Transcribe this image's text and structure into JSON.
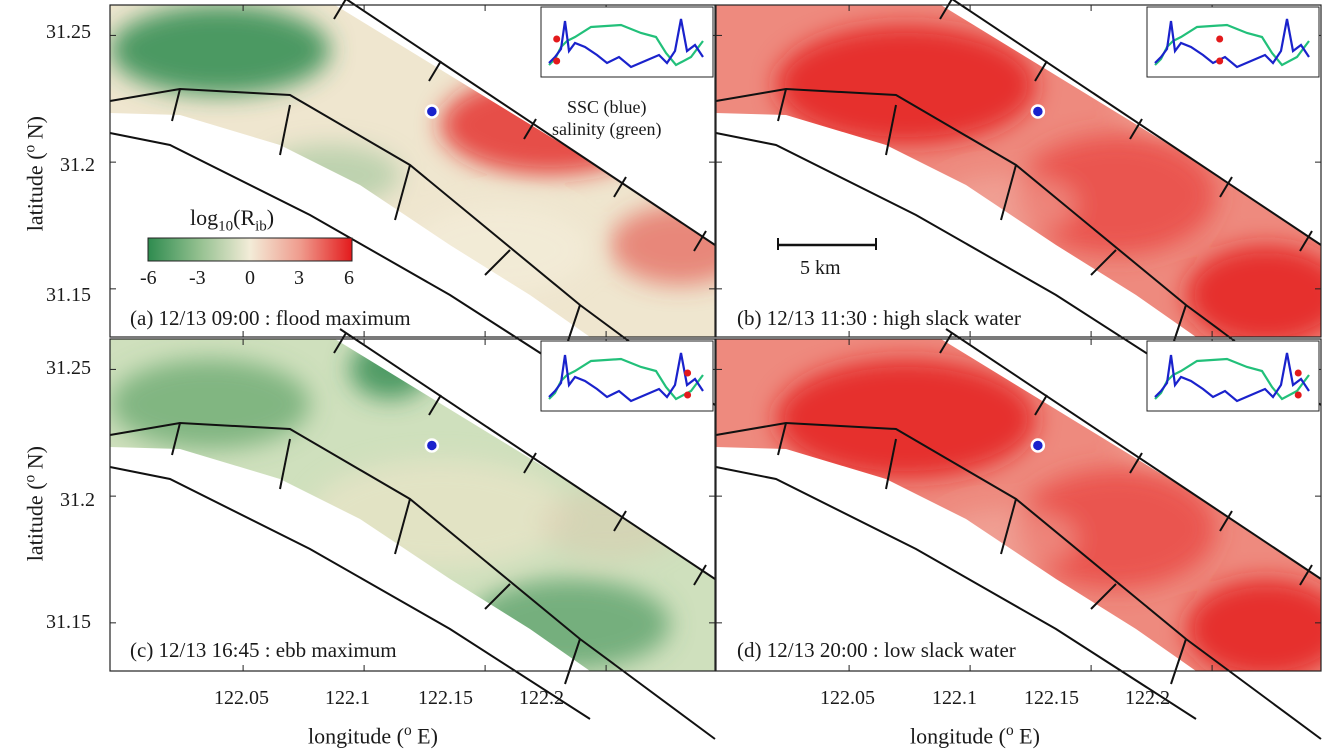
{
  "chart_data": {
    "type": "heatmap",
    "panels": [
      {
        "id": "a",
        "time": "12/13 09:00",
        "phase": "flood maximum",
        "label": "(a) 12/13 09:00 : flood maximum",
        "mood": "mixed",
        "marker": {
          "lon": 122.128,
          "lat": 31.22
        }
      },
      {
        "id": "b",
        "time": "12/13 11:30",
        "phase": "high slack water",
        "label": "(b) 12/13 11:30 : high slack water",
        "mood": "red",
        "marker": {
          "lon": 122.128,
          "lat": 31.22
        }
      },
      {
        "id": "c",
        "time": "12/13 16:45",
        "phase": "ebb maximum",
        "label": "(c) 12/13 16:45 : ebb maximum",
        "mood": "green",
        "marker": {
          "lon": 122.128,
          "lat": 31.22
        }
      },
      {
        "id": "d",
        "time": "12/13 20:00",
        "phase": "low slack water",
        "label": "(d) 12/13 20:00 : low slack water",
        "mood": "red",
        "marker": {
          "lon": 122.128,
          "lat": 31.22
        }
      }
    ],
    "xlabel": "longitude (o E)",
    "ylabel": "latitude (o N)",
    "xticks": [
      122.05,
      122.1,
      122.15,
      122.2
    ],
    "xticklabels": [
      "122.05",
      "122.1",
      "122.15",
      "122.2"
    ],
    "yticks": [
      31.15,
      31.2,
      31.25
    ],
    "yticklabels": [
      "31.15",
      "31.2",
      "31.25"
    ],
    "xlim": [
      121.995,
      122.245
    ],
    "ylim": [
      31.131,
      31.262
    ],
    "colorbar": {
      "title": "log10(Rib)",
      "range": [
        -6,
        6
      ],
      "ticks": [
        -6,
        -3,
        0,
        3,
        6
      ],
      "ticklabels": [
        "-6",
        "-3",
        "0",
        "3",
        "6"
      ],
      "colors": [
        "#2e8b4f",
        "#f3ecd8",
        "#e31a1c"
      ]
    },
    "scalebar": "5 km",
    "inset_legend": {
      "line1": "SSC (blue)",
      "line2": "salinity (green)",
      "ssc_color": "#1a22cc",
      "salinity_color": "#22c07a",
      "marker_color": "#e31a1c"
    },
    "inset_marker_positions": [
      0.05,
      0.42,
      0.9,
      0.93
    ]
  }
}
